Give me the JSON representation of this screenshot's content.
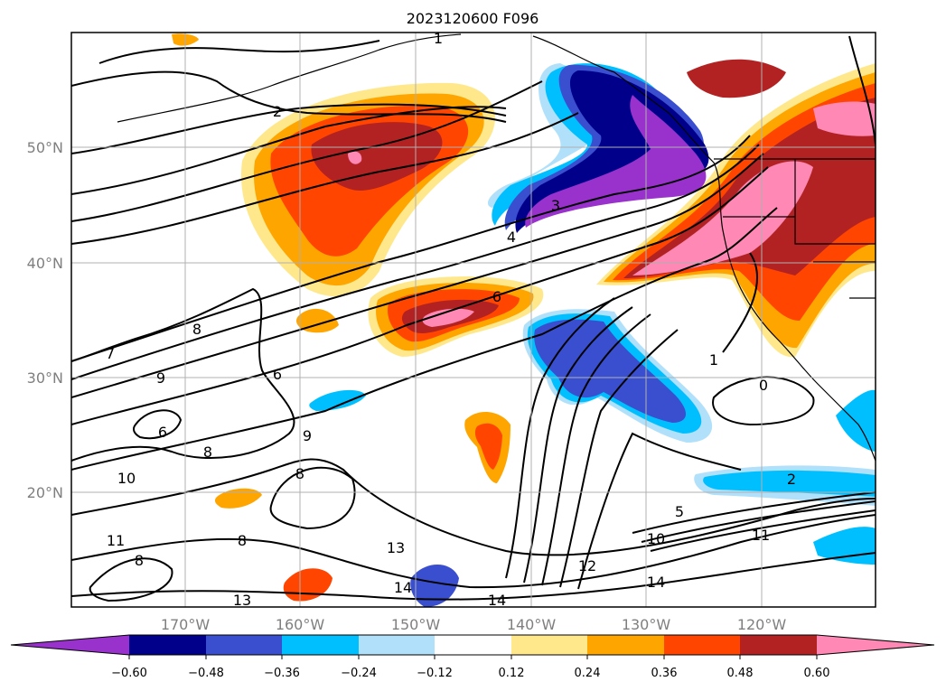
{
  "title": "2023120600 F096",
  "map": {
    "longitude_labels": [
      "170°W",
      "160°W",
      "150°W",
      "140°W",
      "130°W",
      "120°W"
    ],
    "latitude_labels": [
      "50°N",
      "40°N",
      "30°N",
      "20°N"
    ],
    "gridlines": true,
    "contour_labels": [
      "1",
      "2",
      "3",
      "4",
      "6",
      "8",
      "7",
      "9",
      "6",
      "8",
      "9",
      "10",
      "11",
      "8",
      "6",
      "8",
      "8",
      "13",
      "14",
      "14",
      "13",
      "12",
      "10",
      "5",
      "11",
      "2",
      "1",
      "0",
      "14"
    ]
  },
  "colorbar": {
    "ticks": [
      "−0.60",
      "−0.48",
      "−0.36",
      "−0.24",
      "−0.12",
      "0.12",
      "0.24",
      "0.36",
      "0.48",
      "0.60"
    ],
    "colors": {
      "under": "#9932cc",
      "bins": [
        "#00008b",
        "#3a4fcf",
        "#00bfff",
        "#b0e0fa",
        "#ffffff",
        "#ffe88c",
        "#ffa500",
        "#ff4500",
        "#b22222",
        "#ff88b4"
      ],
      "over": "#ff88b4"
    }
  }
}
